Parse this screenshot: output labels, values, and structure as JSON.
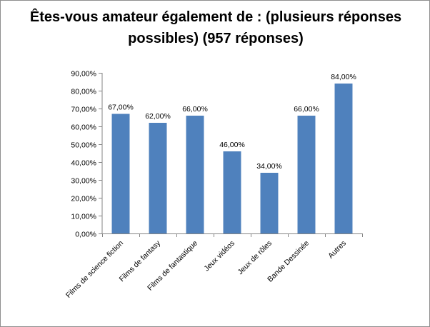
{
  "chart_data": {
    "type": "bar",
    "title": "Êtes-vous amateur également de : (plusieurs réponses possibles) (957 réponses)",
    "xlabel": "",
    "ylabel": "",
    "categories": [
      "Films de science fiction",
      "Films de fantasy",
      "Films de fantastique",
      "Jeux vidéos",
      "Jeux de rôles",
      "Bande Dessinée",
      "Autres"
    ],
    "values": [
      67,
      62,
      66,
      46,
      34,
      66,
      84
    ],
    "value_labels": [
      "67,00%",
      "62,00%",
      "66,00%",
      "46,00%",
      "34,00%",
      "66,00%",
      "84,00%"
    ],
    "ylim": [
      0,
      90
    ],
    "yticks": [
      0,
      10,
      20,
      30,
      40,
      50,
      60,
      70,
      80,
      90
    ],
    "ytick_labels": [
      "0,00%",
      "10,00%",
      "20,00%",
      "30,00%",
      "40,00%",
      "50,00%",
      "60,00%",
      "70,00%",
      "80,00%",
      "90,00%"
    ],
    "grid": false,
    "legend": "none",
    "bar_color": "#4f81bd"
  }
}
